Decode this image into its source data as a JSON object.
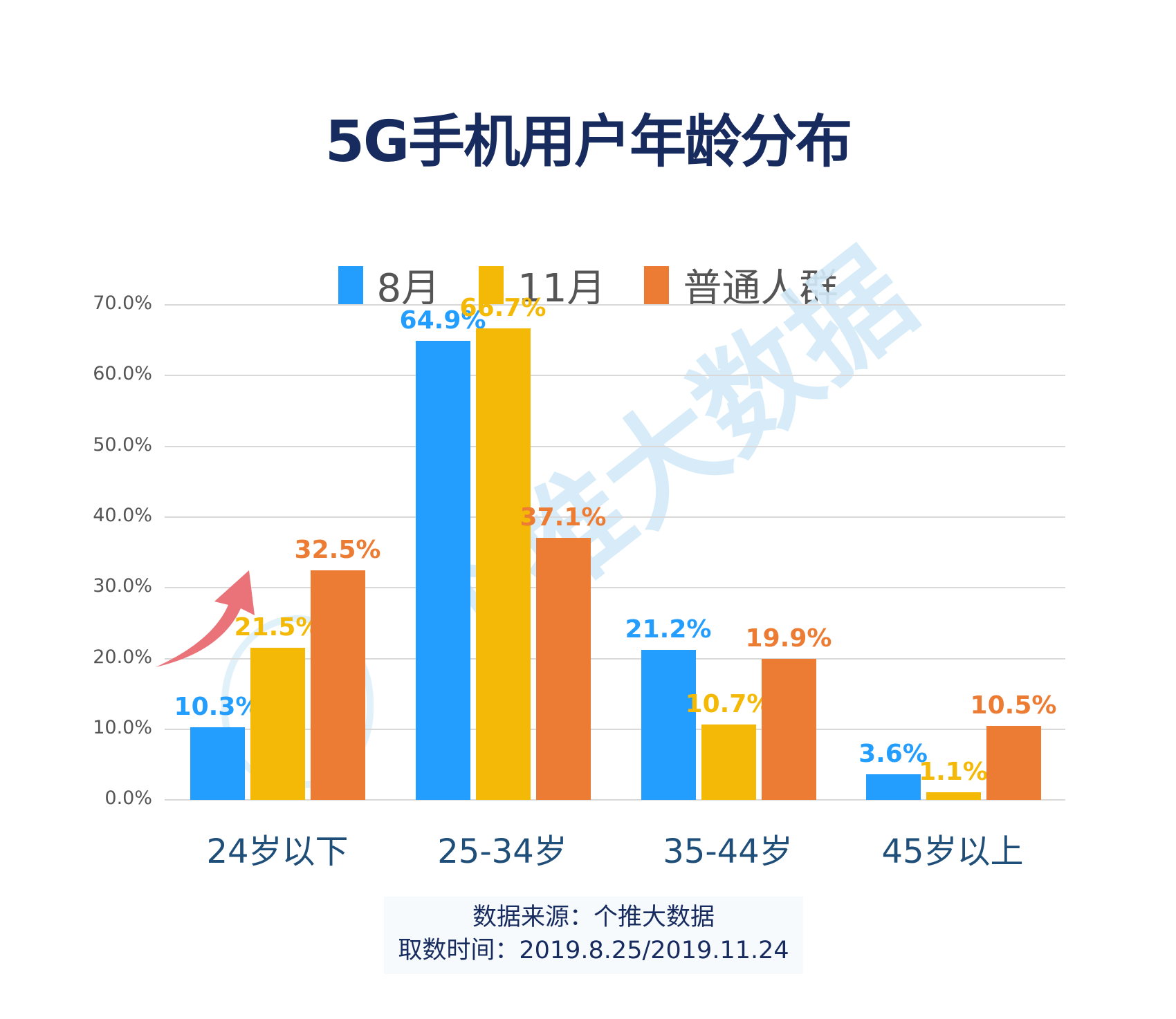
{
  "title": "5G手机用户年龄分布",
  "legend": [
    {
      "label": "8月",
      "color": "#239dfe"
    },
    {
      "label": "11月",
      "color": "#f4b807"
    },
    {
      "label": "普通人群",
      "color": "#ec7c33"
    }
  ],
  "watermark": "个推大数据",
  "source": {
    "line1": "数据来源：个推大数据",
    "line2": "取数时间：2019.8.25/2019.11.24"
  },
  "chart_data": {
    "type": "bar",
    "title": "5G手机用户年龄分布",
    "categories": [
      "24岁以下",
      "25-34岁",
      "35-44岁",
      "45岁以上"
    ],
    "series": [
      {
        "name": "8月",
        "color": "#239dfe",
        "values": [
          10.3,
          64.9,
          21.2,
          3.6
        ],
        "labels": [
          "10.3%",
          "64.9%",
          "21.2%",
          "3.6%"
        ]
      },
      {
        "name": "11月",
        "color": "#f4b807",
        "values": [
          21.5,
          66.7,
          10.7,
          1.1
        ],
        "labels": [
          "21.5%",
          "66.7%",
          "10.7%",
          "1.1%"
        ]
      },
      {
        "name": "普通人群",
        "color": "#ec7c33",
        "values": [
          32.5,
          37.1,
          19.9,
          10.5
        ],
        "labels": [
          "32.5%",
          "37.1%",
          "19.9%",
          "10.5%"
        ]
      }
    ],
    "yticks": [
      "0.0%",
      "10.0%",
      "20.0%",
      "30.0%",
      "40.0%",
      "50.0%",
      "60.0%",
      "70.0%"
    ],
    "xlabel": "",
    "ylabel": "",
    "ylim": [
      0,
      70
    ],
    "grid": true,
    "legend_position": "top",
    "annotations": [
      "red upward arrow near 24岁以下 group"
    ]
  }
}
